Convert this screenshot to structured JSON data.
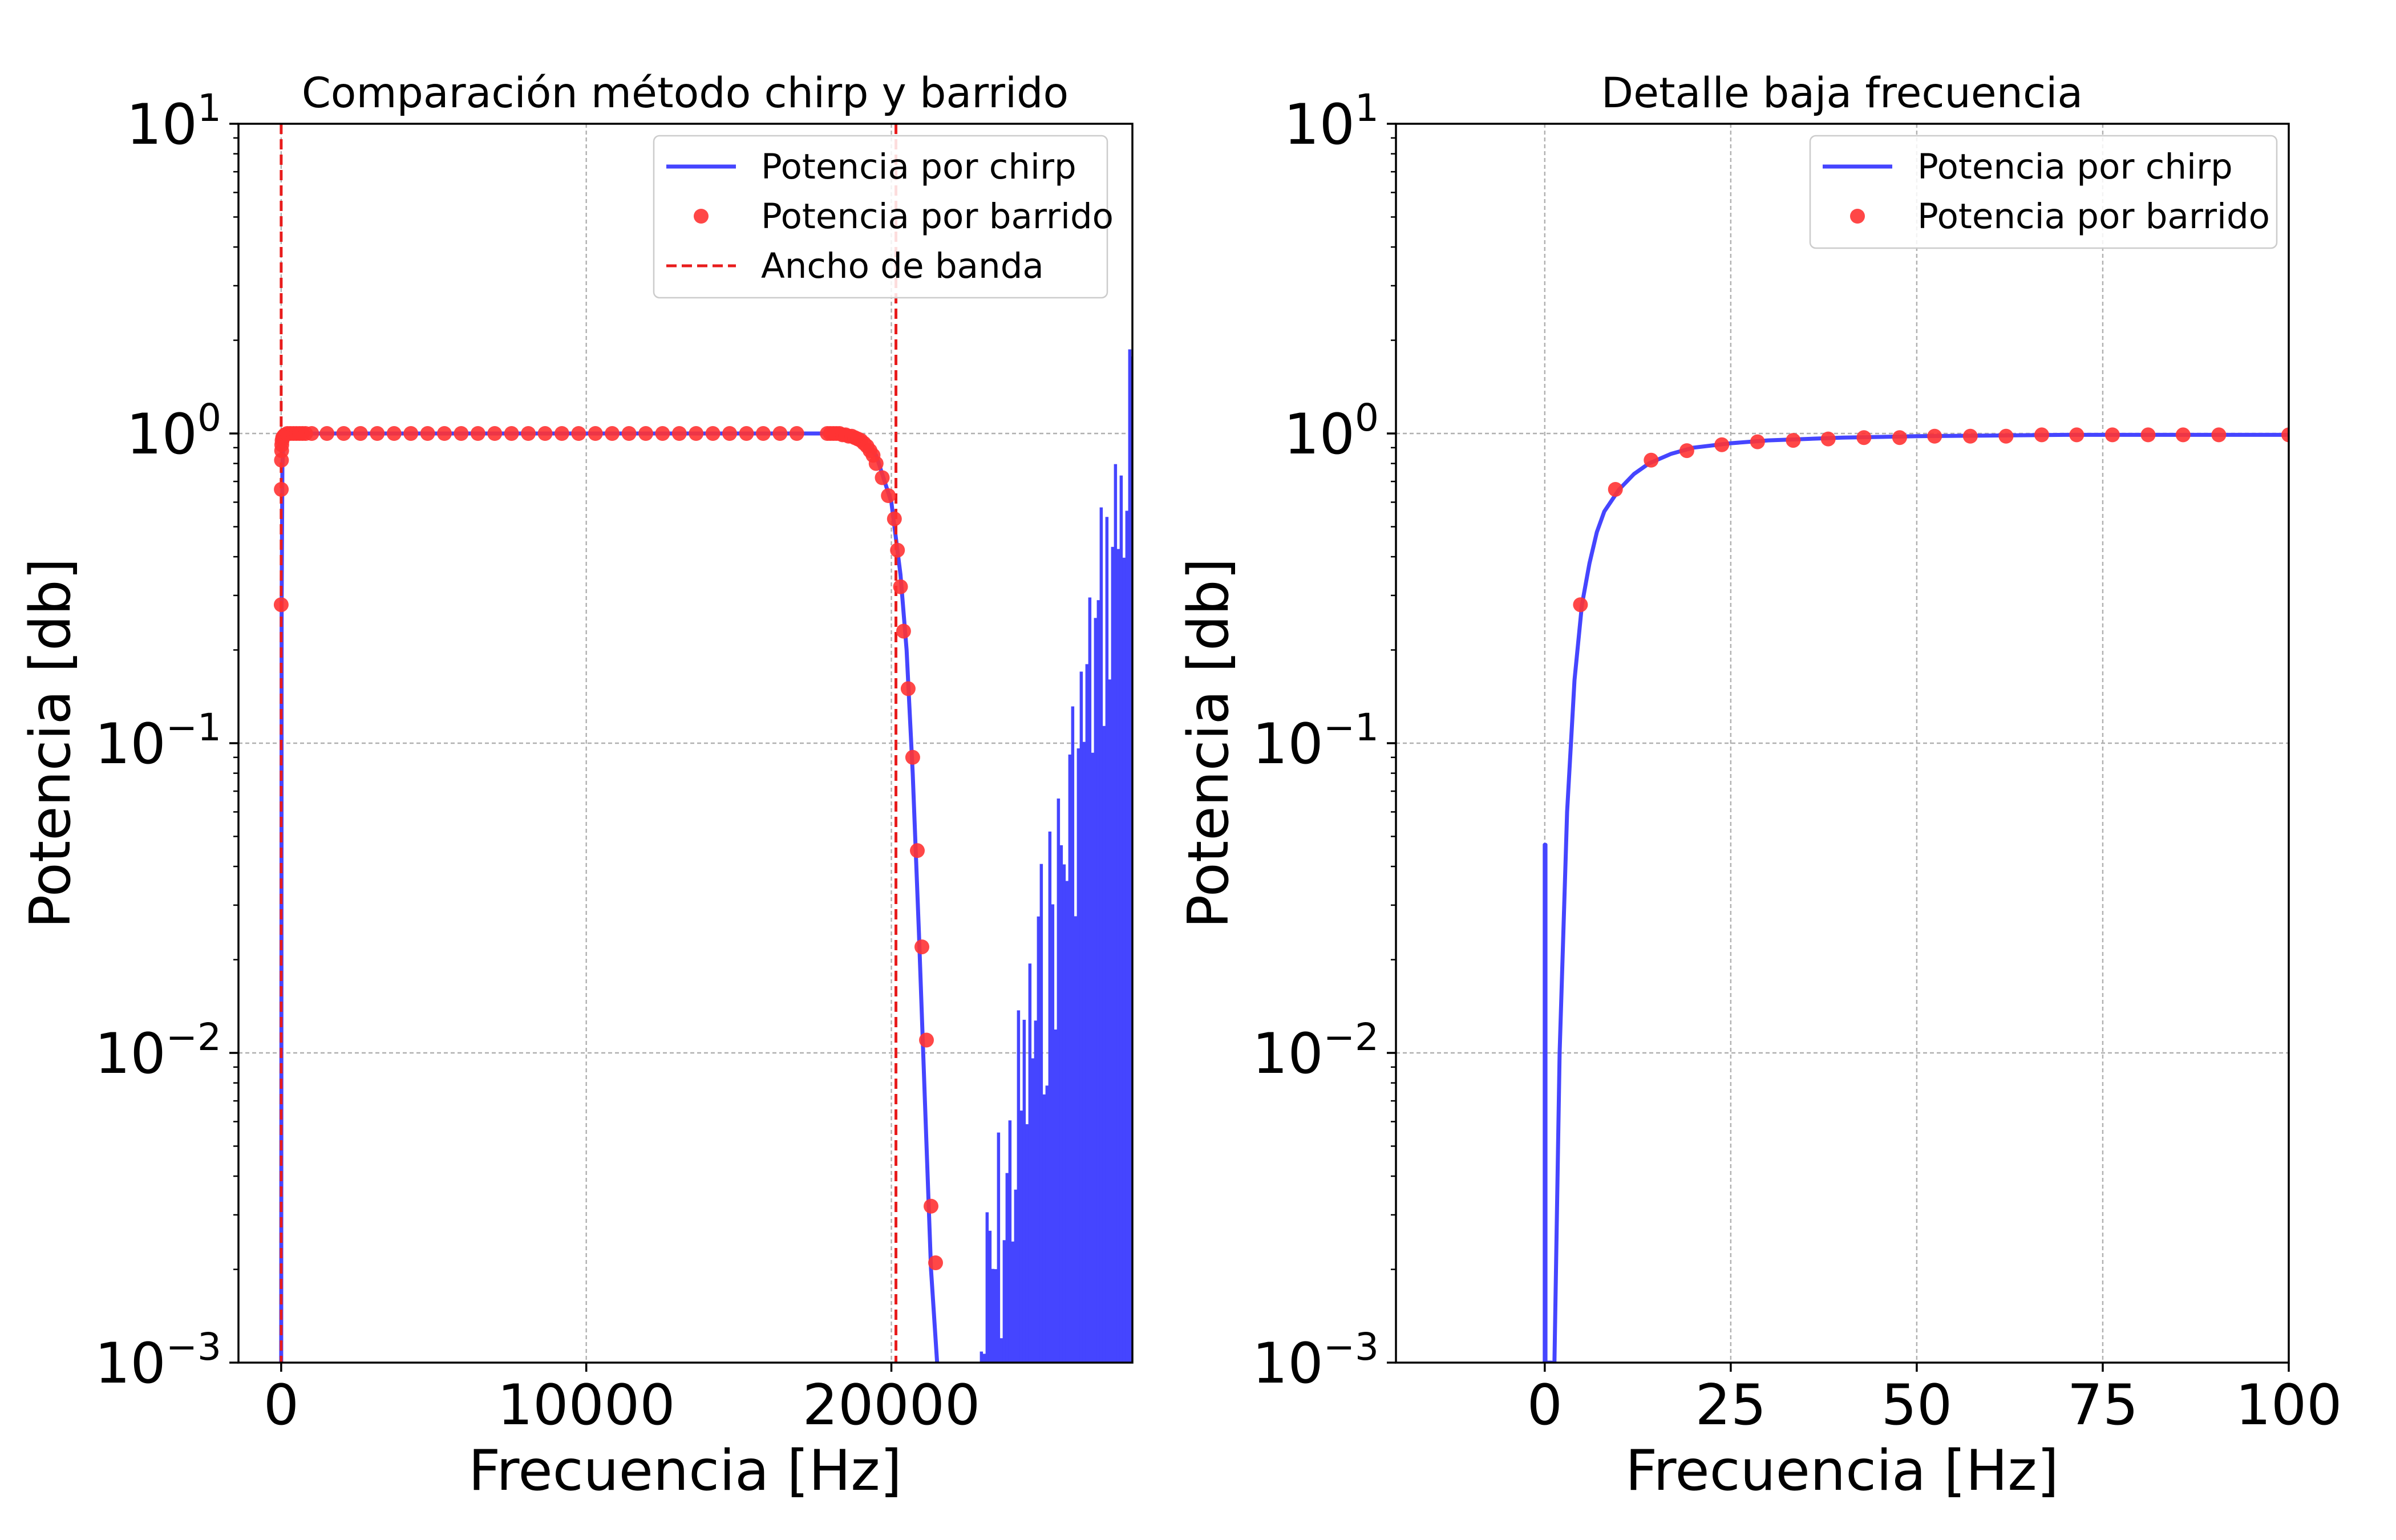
{
  "colors": {
    "chirp": "#4545ff",
    "sweep": "#ff3333",
    "bandwidth": "#e81c1c"
  },
  "chart_data": [
    {
      "type": "line",
      "title": "Comparación método chirp y barrido",
      "xlabel": "Frecuencia [Hz]",
      "ylabel": "Potencia [db]",
      "xlim": [
        -1400,
        27900
      ],
      "ylim": [
        0.001,
        10
      ],
      "yscale": "log",
      "grid": true,
      "legend_position": "top-right",
      "xticks": [
        0,
        10000,
        20000
      ],
      "xtick_labels": [
        "0",
        "10000",
        "20000"
      ],
      "yticks": [
        0.001,
        0.01,
        0.1,
        1,
        10
      ],
      "ytick_labels": [
        {
          "base": "10",
          "exp": "−3"
        },
        {
          "base": "10",
          "exp": "−2"
        },
        {
          "base": "10",
          "exp": "−1"
        },
        {
          "base": "10",
          "exp": "0"
        },
        {
          "base": "10",
          "exp": "1"
        }
      ],
      "series": [
        {
          "name": "Potencia por chirp",
          "style": "line",
          "x": [
            0,
            15,
            40,
            70,
            120,
            200,
            400,
            1000,
            5000,
            10000,
            15000,
            17500,
            18000,
            18500,
            19000,
            19500,
            20000,
            20300,
            20500,
            20700,
            20900,
            21100,
            21300,
            21500
          ],
          "y": [
            0.001,
            0.28,
            0.78,
            0.92,
            0.97,
            0.99,
            1.0,
            1.0,
            1.0,
            1.0,
            1.0,
            1.0,
            1.0,
            0.99,
            0.95,
            0.85,
            0.6,
            0.35,
            0.2,
            0.08,
            0.025,
            0.007,
            0.002,
            0.001
          ],
          "noise_band": {
            "x_start": 22900,
            "x_end": 27900,
            "floor": 0.001,
            "peak_start": 0.003,
            "peak_end": 3.0
          }
        },
        {
          "name": "Potencia por barrido",
          "style": "markers",
          "x": [
            0,
            5,
            10,
            15,
            20,
            30,
            50,
            80,
            120,
            200,
            300,
            400,
            500,
            600,
            700,
            800,
            1000,
            1500,
            2050,
            2600,
            3150,
            3700,
            4250,
            4800,
            5350,
            5900,
            6450,
            7000,
            7550,
            8100,
            8650,
            9200,
            9750,
            10300,
            10850,
            11400,
            11950,
            12500,
            13050,
            13600,
            14150,
            14700,
            15250,
            15800,
            16350,
            16900,
            17900,
            18000,
            18100,
            18200,
            18300,
            18400,
            18500,
            18600,
            18700,
            18800,
            18900,
            19000,
            19100,
            19200,
            19300,
            19400,
            19500,
            19700,
            19900,
            20100,
            20200,
            20300,
            20400,
            20550,
            20700,
            20850,
            21000,
            21150,
            21300,
            21450
          ],
          "y": [
            0.28,
            0.66,
            0.82,
            0.88,
            0.92,
            0.95,
            0.97,
            0.98,
            0.99,
            1.0,
            1.0,
            1.0,
            1.0,
            1.0,
            1.0,
            1.0,
            1.0,
            1.0,
            1.0,
            1.0,
            1.0,
            1.0,
            1.0,
            1.0,
            1.0,
            1.0,
            1.0,
            1.0,
            1.0,
            1.0,
            1.0,
            1.0,
            1.0,
            1.0,
            1.0,
            1.0,
            1.0,
            1.0,
            1.0,
            1.0,
            1.0,
            1.0,
            1.0,
            1.0,
            1.0,
            1.0,
            1.0,
            1.0,
            1.0,
            1.0,
            1.0,
            0.99,
            0.99,
            0.98,
            0.98,
            0.97,
            0.96,
            0.95,
            0.93,
            0.91,
            0.88,
            0.85,
            0.8,
            0.72,
            0.63,
            0.53,
            0.42,
            0.32,
            0.23,
            0.15,
            0.09,
            0.045,
            0.022,
            0.011,
            0.0032,
            0.0021
          ]
        },
        {
          "name": "Ancho de banda",
          "style": "vline",
          "x": [
            0,
            20150
          ]
        }
      ]
    },
    {
      "type": "line",
      "title": "Detalle baja frecuencia",
      "xlabel": "Frecuencia [Hz]",
      "ylabel": "Potencia [db]",
      "xlim": [
        -20,
        100
      ],
      "ylim": [
        0.001,
        10
      ],
      "yscale": "log",
      "grid": true,
      "legend_position": "top-right",
      "xticks": [
        0,
        25,
        50,
        75,
        100
      ],
      "xtick_labels": [
        "0",
        "25",
        "50",
        "75",
        "100"
      ],
      "yticks": [
        0.001,
        0.01,
        0.1,
        1,
        10
      ],
      "ytick_labels": [
        {
          "base": "10",
          "exp": "−3"
        },
        {
          "base": "10",
          "exp": "−2"
        },
        {
          "base": "10",
          "exp": "−1"
        },
        {
          "base": "10",
          "exp": "0"
        },
        {
          "base": "10",
          "exp": "1"
        }
      ],
      "series": [
        {
          "name": "Potencia por chirp",
          "style": "line",
          "x": [
            0,
            0,
            0.1,
            0.1,
            0.9,
            1.1,
            1.3,
            2,
            3,
            4,
            5,
            6,
            7,
            8,
            10,
            12,
            14,
            17,
            20,
            25,
            30,
            40,
            50,
            60,
            70,
            80,
            90,
            100
          ],
          "y": [
            0.001,
            0.047,
            0.047,
            0.001,
            0.001,
            0.0005,
            0.001,
            0.01,
            0.06,
            0.16,
            0.28,
            0.38,
            0.48,
            0.56,
            0.66,
            0.74,
            0.8,
            0.86,
            0.9,
            0.93,
            0.95,
            0.97,
            0.98,
            0.985,
            0.99,
            0.99,
            0.99,
            0.99
          ],
          "noise_band": null
        },
        {
          "name": "Potencia por barrido",
          "style": "markers",
          "x": [
            4.8,
            9.5,
            14.3,
            19.1,
            23.8,
            28.6,
            33.4,
            38.1,
            42.9,
            47.7,
            52.4,
            57.2,
            62.0,
            66.8,
            71.5,
            76.3,
            81.1,
            85.8,
            90.6,
            100
          ],
          "y": [
            0.28,
            0.66,
            0.82,
            0.88,
            0.92,
            0.94,
            0.95,
            0.96,
            0.97,
            0.97,
            0.98,
            0.98,
            0.98,
            0.99,
            0.99,
            0.99,
            0.99,
            0.99,
            0.99,
            0.99
          ]
        }
      ]
    }
  ]
}
